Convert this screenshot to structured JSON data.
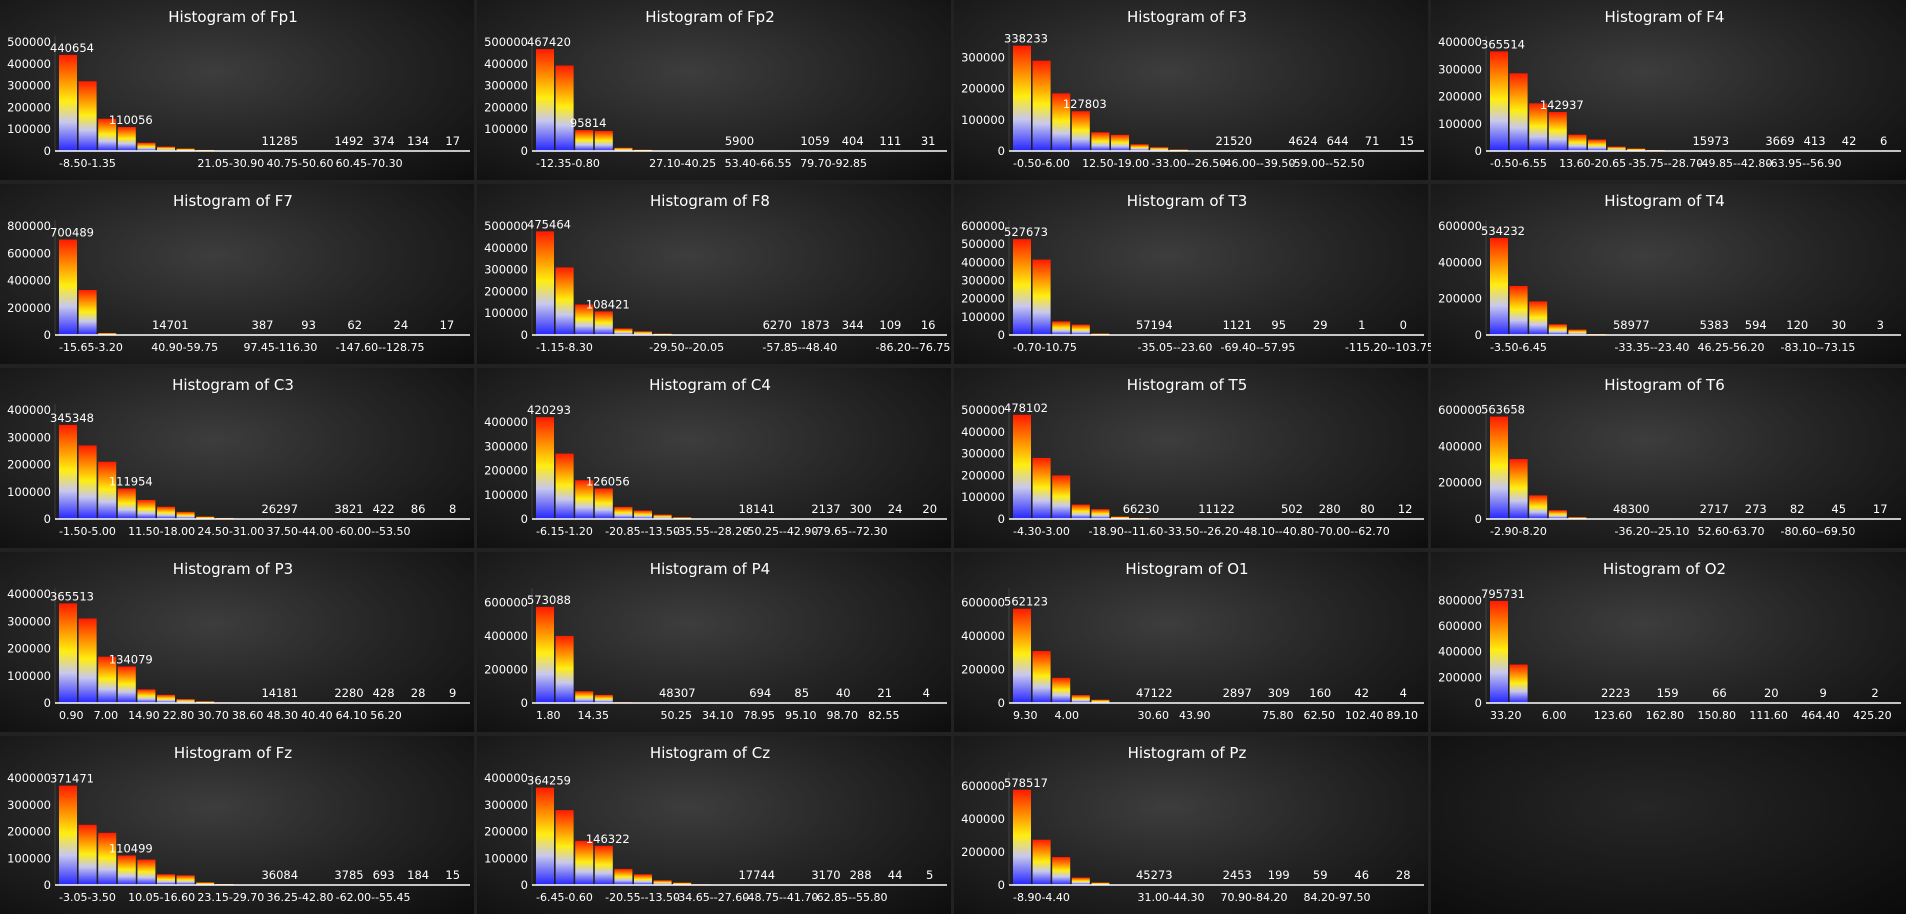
{
  "chart_data": [
    {
      "type": "bar",
      "title": "Histogram of Fp1",
      "values": [
        440654,
        320000,
        148000,
        110056,
        38000,
        20000,
        11285,
        5000,
        1492,
        374,
        134,
        17
      ],
      "labels": [
        "440654",
        "",
        "",
        "110056",
        "",
        "",
        "11285",
        "",
        "1492",
        "374",
        "134",
        "17"
      ],
      "yticks": [
        "0",
        "100000",
        "200000",
        "300000",
        "400000",
        "500000"
      ],
      "ylim": [
        0,
        500000
      ],
      "xticks": [
        "-8.50-1.35",
        "21.05-30.90",
        "40.75-50.60",
        "60.45-70.30"
      ],
      "xtick_bins": [
        0,
        4,
        6,
        8
      ]
    },
    {
      "type": "bar",
      "title": "Histogram of Fp2",
      "values": [
        467420,
        392000,
        95814,
        92000,
        15000,
        5900,
        2500,
        1059,
        404,
        111,
        31
      ],
      "labels": [
        "467420",
        "",
        "95814",
        "",
        "",
        "5900",
        "",
        "1059",
        "404",
        "111",
        "31"
      ],
      "yticks": [
        "0",
        "100000",
        "200000",
        "300000",
        "400000",
        "500000"
      ],
      "ylim": [
        0,
        500000
      ],
      "xticks": [
        "-12.35-0.80",
        "27.10-40.25",
        "53.40-66.55",
        "79.70-92.85"
      ],
      "xtick_bins": [
        0,
        3,
        5,
        7
      ]
    },
    {
      "type": "bar",
      "title": "Histogram of F3",
      "values": [
        338233,
        290000,
        185000,
        127803,
        60000,
        52000,
        21520,
        12000,
        4624,
        644,
        71,
        15
      ],
      "labels": [
        "338233",
        "",
        "",
        "127803",
        "",
        "",
        "21520",
        "",
        "4624",
        "644",
        "71",
        "15"
      ],
      "yticks": [
        "0",
        "100000",
        "200000",
        "300000"
      ],
      "ylim": [
        0,
        350000
      ],
      "xticks": [
        "-0.50-6.00",
        "12.50-19.00",
        "-33.00--26.50",
        "-46.00--39.50",
        "-59.00--52.50"
      ],
      "xtick_bins": [
        0,
        2,
        4,
        6,
        8
      ]
    },
    {
      "type": "bar",
      "title": "Histogram of F4",
      "values": [
        365514,
        285000,
        175000,
        142937,
        60000,
        42000,
        15973,
        9000,
        3669,
        413,
        42,
        6
      ],
      "labels": [
        "365514",
        "",
        "",
        "142937",
        "",
        "",
        "15973",
        "",
        "3669",
        "413",
        "42",
        "6"
      ],
      "yticks": [
        "0",
        "100000",
        "200000",
        "300000",
        "400000"
      ],
      "ylim": [
        0,
        400000
      ],
      "xticks": [
        "-0.50-6.55",
        "13.60-20.65",
        "-35.75--28.70",
        "-49.85--42.80",
        "-63.95--56.90"
      ],
      "xtick_bins": [
        0,
        2,
        4,
        6,
        8
      ]
    },
    {
      "type": "bar",
      "title": "Histogram of F7",
      "values": [
        700489,
        330000,
        14701,
        2000,
        387,
        93,
        62,
        24,
        17
      ],
      "labels": [
        "700489",
        "",
        "14701",
        "",
        "387",
        "93",
        "62",
        "24",
        "17"
      ],
      "yticks": [
        "0",
        "200000",
        "400000",
        "600000",
        "800000"
      ],
      "ylim": [
        0,
        800000
      ],
      "xticks": [
        "-15.65-3.20",
        "40.90-59.75",
        "97.45-116.30",
        "-147.60--128.75"
      ],
      "xtick_bins": [
        0,
        2,
        4,
        6
      ]
    },
    {
      "type": "bar",
      "title": "Histogram of F8",
      "values": [
        475464,
        310000,
        140000,
        108421,
        30000,
        17000,
        6270,
        1873,
        344,
        109,
        16
      ],
      "labels": [
        "475464",
        "",
        "",
        "108421",
        "",
        "",
        "6270",
        "1873",
        "344",
        "109",
        "16"
      ],
      "yticks": [
        "0",
        "100000",
        "200000",
        "300000",
        "400000",
        "500000"
      ],
      "ylim": [
        0,
        500000
      ],
      "xticks": [
        "-1.15-8.30",
        "-29.50--20.05",
        "-57.85--48.40",
        "-86.20--76.75"
      ],
      "xtick_bins": [
        0,
        3,
        6,
        9
      ]
    },
    {
      "type": "bar",
      "title": "Histogram of T3",
      "values": [
        527673,
        415000,
        75000,
        57194,
        8000,
        1121,
        95,
        29,
        1,
        0
      ],
      "labels": [
        "527673",
        "",
        "",
        "57194",
        "",
        "1121",
        "95",
        "29",
        "1",
        "0"
      ],
      "yticks": [
        "0",
        "100000",
        "200000",
        "300000",
        "400000",
        "500000",
        "600000"
      ],
      "ylim": [
        0,
        600000
      ],
      "xticks": [
        "-0.70-10.75",
        "-35.05--23.60",
        "-69.40--57.95",
        "-115.20--103.75"
      ],
      "xtick_bins": [
        0,
        3,
        5,
        8
      ]
    },
    {
      "type": "bar",
      "title": "Histogram of T4",
      "values": [
        534232,
        270000,
        185000,
        58977,
        30000,
        5383,
        594,
        120,
        30,
        3
      ],
      "labels": [
        "534232",
        "",
        "",
        "58977",
        "",
        "5383",
        "594",
        "120",
        "30",
        "3"
      ],
      "yticks": [
        "0",
        "200000",
        "400000",
        "600000"
      ],
      "ylim": [
        0,
        600000
      ],
      "xticks": [
        "-3.50-6.45",
        "-33.35--23.40",
        "46.25-56.20",
        "-83.10--73.15"
      ],
      "xtick_bins": [
        0,
        3,
        5,
        7
      ]
    },
    {
      "type": "bar",
      "title": "Histogram of C3",
      "values": [
        345348,
        270000,
        210000,
        111954,
        70000,
        45000,
        26297,
        9000,
        3821,
        422,
        86,
        8
      ],
      "labels": [
        "345348",
        "",
        "",
        "111954",
        "",
        "",
        "26297",
        "",
        "3821",
        "422",
        "86",
        "8"
      ],
      "yticks": [
        "0",
        "100000",
        "200000",
        "300000",
        "400000"
      ],
      "ylim": [
        0,
        400000
      ],
      "xticks": [
        "-1.50-5.00",
        "11.50-18.00",
        "24.50-31.00",
        "37.50-44.00",
        "-60.00--53.50"
      ],
      "xtick_bins": [
        0,
        2,
        4,
        6,
        8
      ]
    },
    {
      "type": "bar",
      "title": "Histogram of C4",
      "values": [
        420293,
        270000,
        160000,
        126056,
        50000,
        35000,
        18141,
        7000,
        2137,
        300,
        24,
        20
      ],
      "labels": [
        "420293",
        "",
        "",
        "126056",
        "",
        "",
        "18141",
        "",
        "2137",
        "300",
        "24",
        "20"
      ],
      "yticks": [
        "0",
        "100000",
        "200000",
        "300000",
        "400000"
      ],
      "ylim": [
        0,
        450000
      ],
      "xticks": [
        "-6.15-1.20",
        "-20.85--13.50",
        "-35.55--28.20",
        "-50.25--42.90",
        "-79.65--72.30"
      ],
      "xtick_bins": [
        0,
        2,
        4,
        6,
        8
      ]
    },
    {
      "type": "bar",
      "title": "Histogram of T5",
      "values": [
        478102,
        280000,
        200000,
        66230,
        45000,
        11122,
        5000,
        502,
        280,
        80,
        12
      ],
      "labels": [
        "478102",
        "",
        "",
        "66230",
        "",
        "11122",
        "",
        "502",
        "280",
        "80",
        "12"
      ],
      "yticks": [
        "0",
        "100000",
        "200000",
        "300000",
        "400000",
        "500000"
      ],
      "ylim": [
        0,
        500000
      ],
      "xticks": [
        "-4.30-3.00",
        "-18.90--11.60",
        "-33.50--26.20",
        "-48.10--40.80",
        "-70.00--62.70"
      ],
      "xtick_bins": [
        0,
        2,
        4,
        6,
        8
      ]
    },
    {
      "type": "bar",
      "title": "Histogram of T6",
      "values": [
        563658,
        330000,
        130000,
        48300,
        10000,
        2717,
        273,
        82,
        45,
        17
      ],
      "labels": [
        "563658",
        "",
        "",
        "48300",
        "",
        "2717",
        "273",
        "82",
        "45",
        "17"
      ],
      "yticks": [
        "0",
        "200000",
        "400000",
        "600000"
      ],
      "ylim": [
        0,
        600000
      ],
      "xticks": [
        "-2.90-8.20",
        "-36.20--25.10",
        "52.60-63.70",
        "-80.60--69.50"
      ],
      "xtick_bins": [
        0,
        3,
        5,
        7
      ]
    },
    {
      "type": "bar",
      "title": "Histogram of P3",
      "values": [
        365513,
        310000,
        170000,
        134079,
        50000,
        30000,
        14181,
        6000,
        2280,
        428,
        28,
        9
      ],
      "labels": [
        "365513",
        "",
        "",
        "134079",
        "",
        "",
        "14181",
        "",
        "2280",
        "428",
        "28",
        "9"
      ],
      "yticks": [
        "0",
        "100000",
        "200000",
        "300000",
        "400000"
      ],
      "ylim": [
        0,
        400000
      ],
      "xticks": [
        "0.90",
        "7.00",
        "14.90",
        "22.80",
        "30.70",
        "38.60",
        "48.30",
        "40.40",
        "64.10",
        "56.20"
      ],
      "xtick_bins": [
        0,
        1,
        2,
        3,
        4,
        5,
        6,
        7,
        8,
        9
      ]
    },
    {
      "type": "bar",
      "title": "Histogram of P4",
      "values": [
        573088,
        400000,
        70000,
        48307,
        5000,
        694,
        85,
        40,
        21,
        4
      ],
      "labels": [
        "573088",
        "",
        "",
        "48307",
        "",
        "694",
        "85",
        "40",
        "21",
        "4"
      ],
      "yticks": [
        "0",
        "200000",
        "400000",
        "600000"
      ],
      "ylim": [
        0,
        650000
      ],
      "xticks": [
        "1.80",
        "14.35",
        "50.25",
        "34.10",
        "78.95",
        "95.10",
        "98.70",
        "82.55"
      ],
      "xtick_bins": [
        0,
        1,
        3,
        4,
        5,
        6,
        7,
        8
      ]
    },
    {
      "type": "bar",
      "title": "Histogram of O1",
      "values": [
        562123,
        310000,
        150000,
        47122,
        20000,
        2897,
        309,
        160,
        42,
        4
      ],
      "labels": [
        "562123",
        "",
        "",
        "47122",
        "",
        "2897",
        "309",
        "160",
        "42",
        "4"
      ],
      "yticks": [
        "0",
        "200000",
        "400000",
        "600000"
      ],
      "ylim": [
        0,
        650000
      ],
      "xticks": [
        "9.30",
        "4.00",
        "30.60",
        "43.90",
        "75.80",
        "62.50",
        "102.40",
        "89.10"
      ],
      "xtick_bins": [
        0,
        1,
        3,
        4,
        6,
        7,
        8,
        9
      ]
    },
    {
      "type": "bar",
      "title": "Histogram of O2",
      "values": [
        795731,
        300000,
        2223,
        159,
        66,
        20,
        9,
        2
      ],
      "labels": [
        "795731",
        "",
        "2223",
        "159",
        "66",
        "20",
        "9",
        "2"
      ],
      "yticks": [
        "0",
        "200000",
        "400000",
        "600000",
        "800000"
      ],
      "ylim": [
        0,
        850000
      ],
      "xticks": [
        "33.20",
        "6.00",
        "123.60",
        "162.80",
        "150.80",
        "111.60",
        "464.40",
        "425.20"
      ],
      "xtick_bins": [
        0,
        1,
        2,
        3,
        4,
        5,
        6,
        7
      ]
    },
    {
      "type": "bar",
      "title": "Histogram of Fz",
      "values": [
        371471,
        225000,
        195000,
        110499,
        95000,
        40000,
        36084,
        10000,
        3785,
        693,
        184,
        15
      ],
      "labels": [
        "371471",
        "",
        "",
        "110499",
        "",
        "",
        "36084",
        "",
        "3785",
        "693",
        "184",
        "15"
      ],
      "yticks": [
        "0",
        "100000",
        "200000",
        "300000",
        "400000"
      ],
      "ylim": [
        0,
        400000
      ],
      "xticks": [
        "-3.05-3.50",
        "10.05-16.60",
        "23.15-29.70",
        "36.25-42.80",
        "-62.00--55.45"
      ],
      "xtick_bins": [
        0,
        2,
        4,
        6,
        8
      ]
    },
    {
      "type": "bar",
      "title": "Histogram of Cz",
      "values": [
        364259,
        280000,
        165000,
        146322,
        60000,
        40000,
        17744,
        9000,
        3170,
        288,
        44,
        5
      ],
      "labels": [
        "364259",
        "",
        "",
        "146322",
        "",
        "",
        "17744",
        "",
        "3170",
        "288",
        "44",
        "5"
      ],
      "yticks": [
        "0",
        "100000",
        "200000",
        "300000",
        "400000"
      ],
      "ylim": [
        0,
        400000
      ],
      "xticks": [
        "-6.45-0.60",
        "-20.55--13.50",
        "-34.65--27.60",
        "-48.75--41.70",
        "-62.85--55.80"
      ],
      "xtick_bins": [
        0,
        2,
        4,
        6,
        8
      ]
    },
    {
      "type": "bar",
      "title": "Histogram of Pz",
      "values": [
        578517,
        275000,
        170000,
        45273,
        15000,
        2453,
        199,
        59,
        46,
        28
      ],
      "labels": [
        "578517",
        "",
        "",
        "45273",
        "",
        "2453",
        "199",
        "59",
        "46",
        "28"
      ],
      "yticks": [
        "0",
        "200000",
        "400000",
        "600000"
      ],
      "ylim": [
        0,
        650000
      ],
      "xticks": [
        "-8.90-4.40",
        "31.00-44.30",
        "70.90-84.20",
        "84.20-97.50"
      ],
      "xtick_bins": [
        0,
        3,
        5,
        7
      ]
    }
  ],
  "colors": {
    "bar_top": "#ff1a00",
    "bar_orange": "#ff8a00",
    "bar_yellow": "#ffee10",
    "bar_light": "#c8c8ee",
    "bar_bottom": "#2424ff",
    "axis": "#ffffff",
    "text": "#ffffff"
  }
}
